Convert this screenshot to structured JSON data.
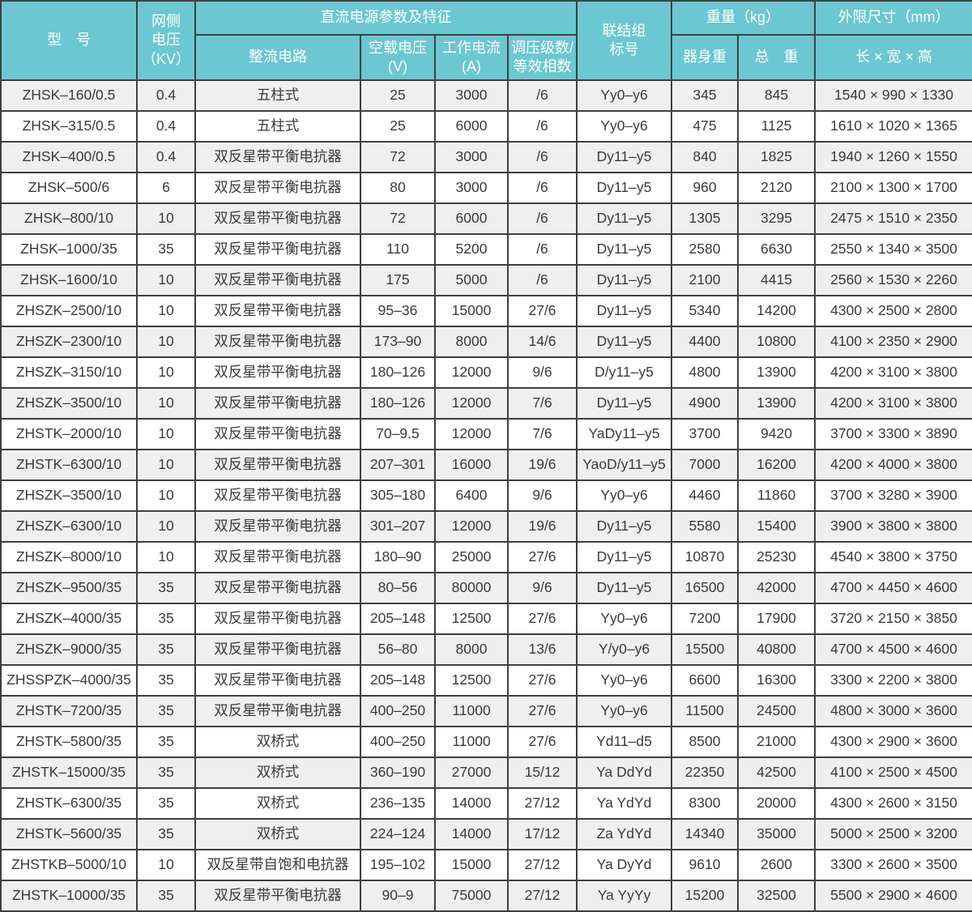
{
  "colors": {
    "header_bg": "#6bc7d2",
    "header_text": "#ffffff",
    "border": "#3f3f3f",
    "body_text": "#3a3a3a",
    "row_odd": "#efefef",
    "row_even": "#ffffff"
  },
  "table": {
    "headers": {
      "model": "型　号",
      "grid_voltage": "网侧\n电压\n（KV）",
      "dc_params_group": "直流电源参数及特征",
      "rectifier_circuit": "整流电路",
      "no_load_voltage": "空载电压\n(V)",
      "working_current": "工作电流\n(A)",
      "regulation_steps": "调压级数/\n等效相数",
      "connection_group": "联结组\n标号",
      "weight_group": "重量（kg）",
      "body_weight": "器身重",
      "total_weight": "总　重",
      "dimensions_group": "外限尺寸（mm）",
      "dimensions_sub": "长 × 宽 × 高"
    },
    "rows": [
      [
        "ZHSK–160/0.5",
        "0.4",
        "五柱式",
        "25",
        "3000",
        "/6",
        "Yy0–y6",
        "345",
        "845",
        "1540 × 990 × 1330"
      ],
      [
        "ZHSK–315/0.5",
        "0.4",
        "五柱式",
        "25",
        "6000",
        "/6",
        "Yy0–y6",
        "475",
        "1125",
        "1610 × 1020 × 1365"
      ],
      [
        "ZHSK–400/0.5",
        "0.4",
        "双反星带平衡电抗器",
        "72",
        "3000",
        "/6",
        "Dy11–y5",
        "840",
        "1825",
        "1940 × 1260 × 1550"
      ],
      [
        "ZHSK–500/6",
        "6",
        "双反星带平衡电抗器",
        "80",
        "3000",
        "/6",
        "Dy11–y5",
        "960",
        "2120",
        "2100 × 1300 × 1700"
      ],
      [
        "ZHSK–800/10",
        "10",
        "双反星带平衡电抗器",
        "72",
        "6000",
        "/6",
        "Dy11–y5",
        "1305",
        "3295",
        "2475 × 1510 × 2350"
      ],
      [
        "ZHSK–1000/35",
        "35",
        "双反星带平衡电抗器",
        "110",
        "5200",
        "/6",
        "Dy11–y5",
        "2580",
        "6630",
        "2550 × 1340 × 3500"
      ],
      [
        "ZHSK–1600/10",
        "10",
        "双反星带平衡电抗器",
        "175",
        "5000",
        "/6",
        "Dy11–y5",
        "2100",
        "4415",
        "2560 × 1530 × 2260"
      ],
      [
        "ZHSZK–2500/10",
        "10",
        "双反星带平衡电抗器",
        "95–36",
        "15000",
        "27/6",
        "Dy11–y5",
        "5340",
        "14200",
        "4300 × 2500 × 2800"
      ],
      [
        "ZHSZK–2300/10",
        "10",
        "双反星带平衡电抗器",
        "173–90",
        "8000",
        "14/6",
        "Dy11–y5",
        "4400",
        "10800",
        "4100 × 2350 × 2900"
      ],
      [
        "ZHSZK–3150/10",
        "10",
        "双反星带平衡电抗器",
        "180–126",
        "12000",
        "9/6",
        "D/y11–y5",
        "4800",
        "13900",
        "4200 × 3100 × 3800"
      ],
      [
        "ZHSZK–3500/10",
        "10",
        "双反星带平衡电抗器",
        "180–126",
        "12000",
        "7/6",
        "Dy11–y5",
        "4900",
        "13900",
        "4200 × 3100 × 3800"
      ],
      [
        "ZHSTK–2000/10",
        "10",
        "双反星带平衡电抗器",
        "70–9.5",
        "12000",
        "7/6",
        "YaDy11–y5",
        "3700",
        "9420",
        "3700 × 3300 × 3890"
      ],
      [
        "ZHSTK–6300/10",
        "10",
        "双反星带平衡电抗器",
        "207–301",
        "16000",
        "19/6",
        "YaoD/y11–y5",
        "7000",
        "16200",
        "4200 × 4000 × 3800"
      ],
      [
        "ZHSZK–3500/10",
        "10",
        "双反星带平衡电抗器",
        "305–180",
        "6400",
        "9/6",
        "Yy0–y6",
        "4460",
        "11860",
        "3700 × 3280 × 3900"
      ],
      [
        "ZHSZK–6300/10",
        "10",
        "双反星带平衡电抗器",
        "301–207",
        "12000",
        "19/6",
        "Dy11–y5",
        "5580",
        "15400",
        "3900 × 3800 × 3800"
      ],
      [
        "ZHSZK–8000/10",
        "10",
        "双反星带平衡电抗器",
        "180–90",
        "25000",
        "27/6",
        "Dy11–y5",
        "10870",
        "25230",
        "4540 × 3800 × 3750"
      ],
      [
        "ZHSZK–9500/35",
        "35",
        "双反星带平衡电抗器",
        "80–56",
        "80000",
        "9/6",
        "Dy11–y5",
        "16500",
        "42000",
        "4700 × 4450 × 4600"
      ],
      [
        "ZHSZK–4000/35",
        "35",
        "双反星带平衡电抗器",
        "205–148",
        "12500",
        "27/6",
        "Yy0–y6",
        "7200",
        "17900",
        "3720 × 2150 × 3850"
      ],
      [
        "ZHSZK–9000/35",
        "35",
        "双反星带平衡电抗器",
        "56–80",
        "8000",
        "13/6",
        "Y/y0–y6",
        "15500",
        "40800",
        "4700 × 4500 × 4600"
      ],
      [
        "ZHSSPZK–4000/35",
        "35",
        "双反星带平衡电抗器",
        "205–148",
        "12500",
        "27/6",
        "Yy0–y6",
        "6600",
        "16300",
        "3300 × 2200 × 3800"
      ],
      [
        "ZHSTK–7200/35",
        "35",
        "双反星带平衡电抗器",
        "400–250",
        "11000",
        "27/6",
        "Yy0–y6",
        "11500",
        "24500",
        "4800 × 3000 × 3600"
      ],
      [
        "ZHSTK–5800/35",
        "35",
        "双桥式",
        "400–250",
        "11000",
        "27/6",
        "Yd11–d5",
        "8500",
        "21000",
        "4300 × 2900 × 3600"
      ],
      [
        "ZHSTK–15000/35",
        "35",
        "双桥式",
        "360–190",
        "27000",
        "15/12",
        "Ya DdYd",
        "22350",
        "42500",
        "4100 × 2500 × 4500"
      ],
      [
        "ZHSTK–6300/35",
        "35",
        "双桥式",
        "236–135",
        "14000",
        "27/12",
        "Ya YdYd",
        "8300",
        "20000",
        "4300 × 2600 × 3150"
      ],
      [
        "ZHSTK–5600/35",
        "35",
        "双桥式",
        "224–124",
        "14000",
        "17/12",
        "Za YdYd",
        "14340",
        "35000",
        "5000 × 2500 × 3200"
      ],
      [
        "ZHSTKB–5000/10",
        "10",
        "双反星带自饱和电抗器",
        "195–102",
        "15000",
        "27/12",
        "Ya DyYd",
        "9610",
        "2600",
        "3300 × 2600 × 3500"
      ],
      [
        "ZHSTK–10000/35",
        "35",
        "双反星带平衡电抗器",
        "90–9",
        "75000",
        "27/12",
        "Ya YyYy",
        "15200",
        "32500",
        "5500 × 2900 × 4600"
      ]
    ]
  }
}
